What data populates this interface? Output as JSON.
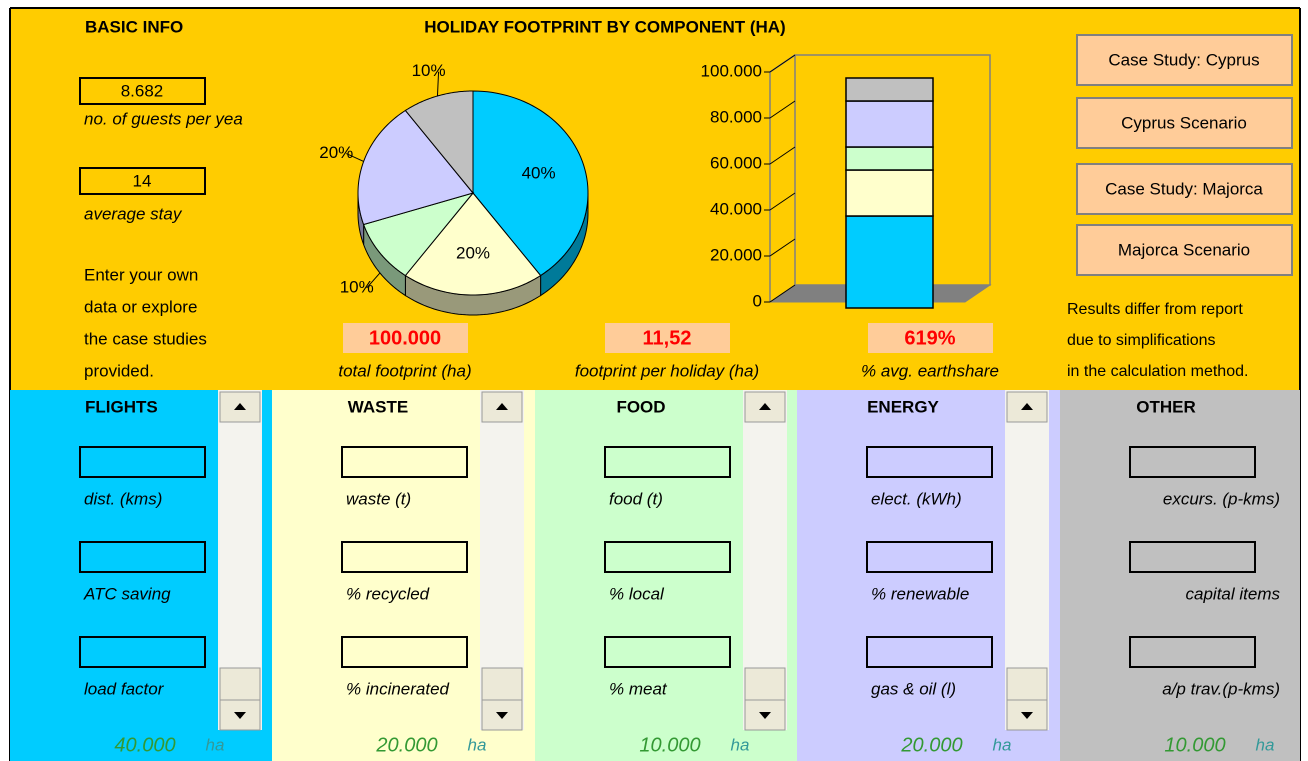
{
  "basic_info": {
    "title": "BASIC INFO",
    "fields": [
      {
        "value": "8.682",
        "label": "no. of guests per yea"
      },
      {
        "value": "14",
        "label": "average stay"
      }
    ],
    "note": [
      "Enter your own",
      "data or explore",
      "the case studies",
      "provided."
    ]
  },
  "chart_title": "HOLIDAY FOOTPRINT BY COMPONENT (HA)",
  "chart_data": [
    {
      "type": "pie",
      "values": [
        40,
        20,
        10,
        20,
        10
      ],
      "value_labels": [
        "40%",
        "20%",
        "10%",
        "20%",
        "10%"
      ],
      "colors": [
        "#00CCFF",
        "#FFFFCC",
        "#CCFFCC",
        "#CCCCFF",
        "#C0C0C0"
      ]
    },
    {
      "type": "bar",
      "stacked": true,
      "series": [
        {
          "color": "#00CCFF",
          "values": [
            40000
          ]
        },
        {
          "color": "#FFFFCC",
          "values": [
            20000
          ]
        },
        {
          "color": "#CCFFCC",
          "values": [
            10000
          ]
        },
        {
          "color": "#CCCCFF",
          "values": [
            20000
          ]
        },
        {
          "color": "#C0C0C0",
          "values": [
            10000
          ]
        }
      ],
      "ylim": [
        0,
        100000
      ],
      "yticks": [
        0,
        {
          "value": 20000,
          "label": "20.000"
        },
        {
          "value": 40000,
          "label": "40.000"
        },
        {
          "value": 60000,
          "label": "60.000"
        },
        {
          "value": 80000,
          "label": "80.000"
        },
        {
          "value": 100000,
          "label": "100.000"
        }
      ]
    }
  ],
  "stats": [
    {
      "value": "100.000",
      "label": "total footprint (ha)"
    },
    {
      "value": "11,52",
      "label": "footprint per holiday (ha)"
    },
    {
      "value": "619%",
      "label": "% avg. earthshare"
    }
  ],
  "buttons": [
    "Case Study: Cyprus",
    "Cyprus Scenario",
    "Case Study: Majorca",
    "Majorca Scenario"
  ],
  "disclaimer": [
    "Results differ from report",
    "due to simplifications",
    "in the calculation method."
  ],
  "panels": [
    {
      "title": "FLIGHTS",
      "color": "#00CCFF",
      "fields": [
        "dist. (kms)",
        "ATC saving",
        "load factor"
      ],
      "total": "40.000",
      "unit": "ha",
      "scrollbar": true
    },
    {
      "title": "WASTE",
      "color": "#FFFFCC",
      "fields": [
        "waste (t)",
        "% recycled",
        "% incinerated"
      ],
      "total": "20.000",
      "unit": "ha",
      "scrollbar": true
    },
    {
      "title": "FOOD",
      "color": "#CCFFCC",
      "fields": [
        "food (t)",
        "% local",
        "% meat"
      ],
      "total": "10.000",
      "unit": "ha",
      "scrollbar": true
    },
    {
      "title": "ENERGY",
      "color": "#CCCCFF",
      "fields": [
        "elect. (kWh)",
        "% renewable",
        "gas & oil (l)"
      ],
      "total": "20.000",
      "unit": "ha",
      "scrollbar": true
    },
    {
      "title": "OTHER",
      "color": "#C0C0C0",
      "fields": [
        "excurs. (p-kms)",
        "capital items",
        "a/p trav.(p-kms)"
      ],
      "total": "10.000",
      "unit": "ha",
      "scrollbar": false
    }
  ]
}
